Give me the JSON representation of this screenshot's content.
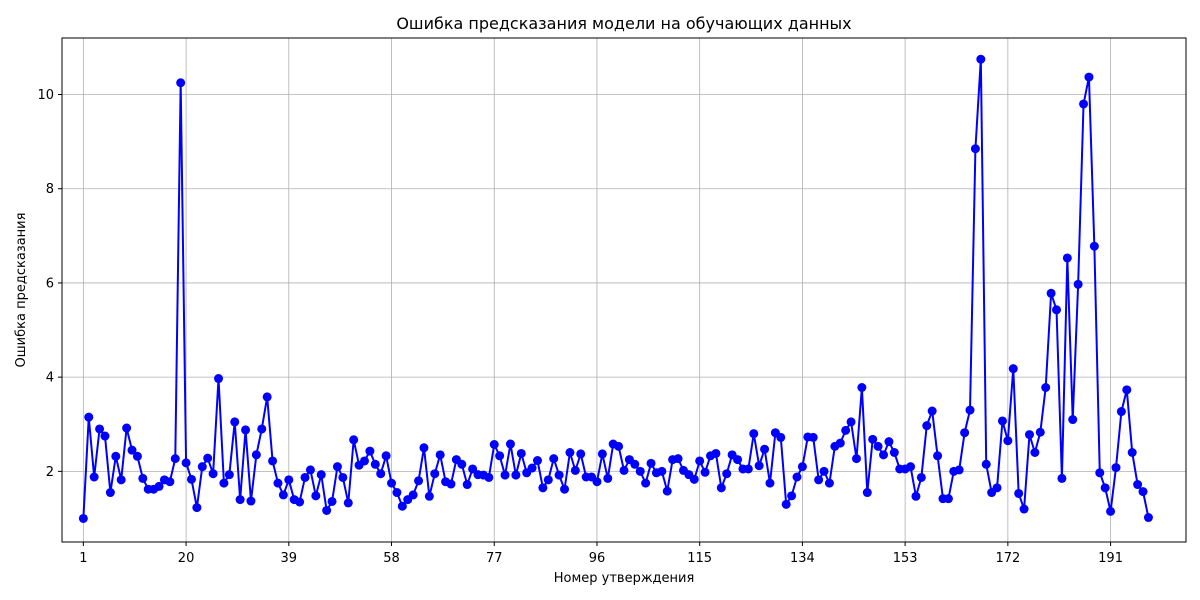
{
  "chart_data": {
    "type": "line",
    "title": "Ошибка предсказания модели на обучающих данных",
    "xlabel": "Номер утверждения",
    "ylabel": "Ошибка предсказания",
    "xlim": [
      -2.95,
      204.95
    ],
    "ylim": [
      0.5,
      11.2
    ],
    "x_ticks": [
      1,
      20,
      39,
      58,
      77,
      96,
      115,
      134,
      153,
      172,
      191
    ],
    "y_ticks": [
      2,
      4,
      6,
      8,
      10
    ],
    "grid": true,
    "legend": "none",
    "series": [
      {
        "color": "#0000ff",
        "marker": "circle",
        "x_start": 1,
        "values": [
          1.0,
          3.15,
          1.88,
          2.9,
          2.75,
          1.55,
          2.32,
          1.82,
          2.92,
          2.45,
          2.32,
          1.85,
          1.62,
          1.62,
          1.68,
          1.82,
          1.78,
          2.27,
          10.25,
          2.18,
          1.83,
          1.23,
          2.1,
          2.28,
          1.95,
          3.97,
          1.75,
          1.93,
          3.05,
          1.4,
          2.88,
          1.37,
          2.35,
          2.9,
          3.58,
          2.22,
          1.75,
          1.5,
          1.82,
          1.4,
          1.35,
          1.87,
          2.03,
          1.48,
          1.93,
          1.17,
          1.36,
          2.1,
          1.87,
          1.33,
          2.67,
          2.13,
          2.22,
          2.43,
          2.15,
          1.95,
          2.33,
          1.75,
          1.55,
          1.26,
          1.4,
          1.5,
          1.8,
          2.5,
          1.47,
          1.95,
          2.35,
          1.78,
          1.73,
          2.25,
          2.15,
          1.72,
          2.05,
          1.93,
          1.92,
          1.87,
          2.57,
          2.33,
          1.92,
          2.58,
          1.92,
          2.38,
          1.97,
          2.07,
          2.23,
          1.65,
          1.82,
          2.27,
          1.92,
          1.62,
          2.4,
          2.02,
          2.37,
          1.88,
          1.88,
          1.78,
          2.37,
          1.85,
          2.58,
          2.53,
          2.02,
          2.25,
          2.15,
          2.0,
          1.75,
          2.17,
          1.97,
          2.0,
          1.58,
          2.25,
          2.27,
          2.02,
          1.93,
          1.83,
          2.22,
          1.98,
          2.33,
          2.38,
          1.65,
          1.95,
          2.35,
          2.25,
          2.05,
          2.05,
          2.8,
          2.12,
          2.47,
          1.75,
          2.82,
          2.72,
          1.3,
          1.48,
          1.88,
          2.1,
          2.73,
          2.72,
          1.82,
          2.0,
          1.75,
          2.53,
          2.6,
          2.87,
          3.05,
          2.27,
          3.78,
          1.55,
          2.68,
          2.53,
          2.35,
          2.63,
          2.4,
          2.05,
          2.05,
          2.1,
          1.47,
          1.87,
          2.97,
          3.28,
          2.33,
          1.42,
          1.42,
          2.0,
          2.03,
          2.82,
          3.3,
          8.85,
          10.75,
          2.15,
          1.55,
          1.65,
          3.07,
          2.65,
          4.18,
          1.53,
          1.2,
          2.78,
          2.4,
          2.83,
          3.78,
          5.78,
          5.43,
          1.85,
          6.53,
          3.1,
          5.97,
          9.8,
          10.37,
          6.78,
          1.97,
          1.65,
          1.15,
          2.08,
          3.27,
          3.73,
          2.4,
          1.72,
          1.57,
          1.02
        ]
      }
    ]
  }
}
